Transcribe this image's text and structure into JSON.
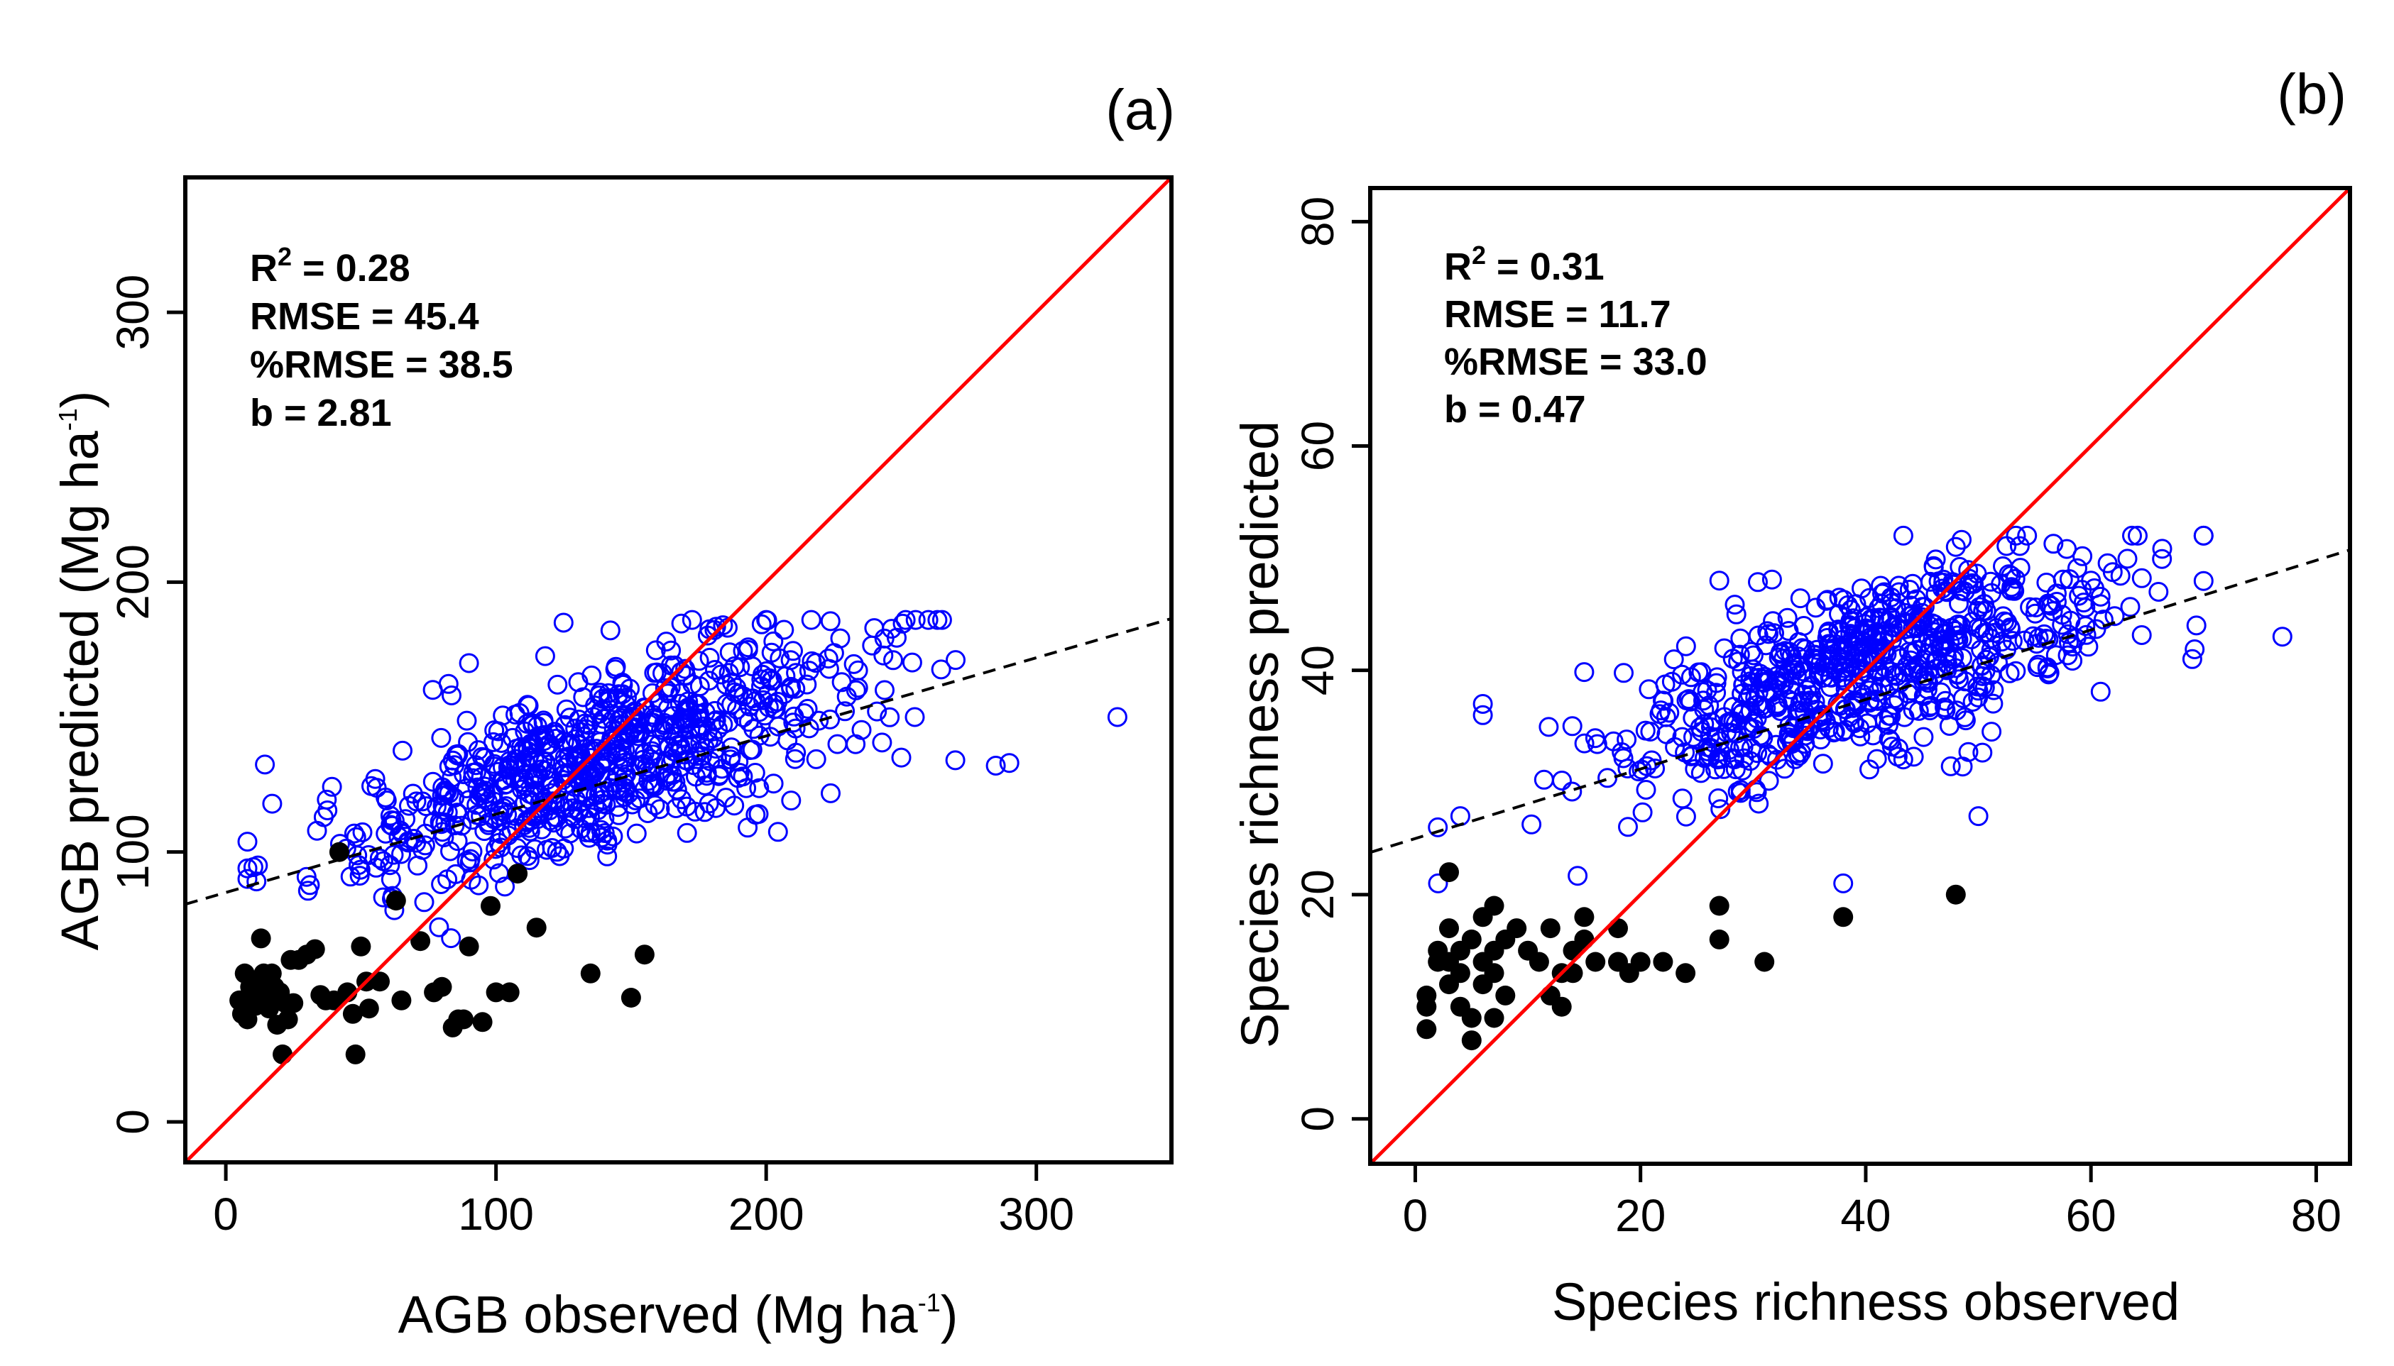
{
  "colors": {
    "open_points": "#0000ff",
    "filled_points": "#000000",
    "identity_line": "#ff0000",
    "fit_line": "#000000"
  },
  "chart_data": [
    {
      "type": "scatter",
      "panel_label": "(a)",
      "xlabel_main": "AGB observed (Mg ha",
      "xlabel_sup": "-1",
      "xlabel_end": ")",
      "ylabel_main": "AGB predicted (Mg ha",
      "ylabel_sup": "-1",
      "ylabel_end": ")",
      "xlim": [
        -15,
        350
      ],
      "ylim": [
        -15,
        350
      ],
      "xticks": [
        0,
        100,
        200,
        300
      ],
      "yticks": [
        0,
        100,
        200,
        300
      ],
      "xtick_labels": [
        "0",
        "100",
        "200",
        "300"
      ],
      "ytick_labels": [
        "0",
        "100",
        "200",
        "300"
      ],
      "stats": {
        "r2_prefix": "R",
        "r2_sup": "2",
        "r2_value": " = 0.28",
        "rmse": "RMSE = 45.4",
        "prmse": "%RMSE = 38.5",
        "b": "b = 2.81"
      },
      "identity_line": {
        "slope": 1,
        "intercept": 0
      },
      "fit_line": {
        "slope": 0.29,
        "intercept": 85
      },
      "cloud": {
        "n": 760,
        "x_range": [
          8,
          335
        ],
        "x_center": 140,
        "x_spread": 48,
        "y_center_at_x0": 90,
        "y_slope": 0.32,
        "y_spread": 16,
        "y_range": [
          62,
          186
        ]
      },
      "series_open_outliers": [
        [
          330,
          150
        ],
        [
          290,
          133
        ],
        [
          285,
          132
        ],
        [
          270,
          134
        ],
        [
          255,
          150
        ],
        [
          240,
          183
        ],
        [
          200,
          186
        ],
        [
          125,
          185
        ],
        [
          163,
          178
        ],
        [
          90,
          170
        ],
        [
          250,
          135
        ]
      ],
      "series_filled": [
        [
          5,
          45
        ],
        [
          6,
          40
        ],
        [
          7,
          55
        ],
        [
          8,
          38
        ],
        [
          9,
          50
        ],
        [
          10,
          48
        ],
        [
          11,
          43
        ],
        [
          12,
          52
        ],
        [
          13,
          68
        ],
        [
          14,
          55
        ],
        [
          15,
          47
        ],
        [
          16,
          42
        ],
        [
          17,
          55
        ],
        [
          18,
          50
        ],
        [
          19,
          36
        ],
        [
          20,
          48
        ],
        [
          21,
          25
        ],
        [
          22,
          44
        ],
        [
          23,
          38
        ],
        [
          24,
          60
        ],
        [
          25,
          44
        ],
        [
          27,
          60
        ],
        [
          30,
          62
        ],
        [
          33,
          64
        ],
        [
          35,
          47
        ],
        [
          37,
          45
        ],
        [
          40,
          45
        ],
        [
          42,
          100
        ],
        [
          45,
          48
        ],
        [
          47,
          40
        ],
        [
          48,
          25
        ],
        [
          50,
          65
        ],
        [
          52,
          52
        ],
        [
          53,
          42
        ],
        [
          57,
          52
        ],
        [
          63,
          82
        ],
        [
          65,
          45
        ],
        [
          72,
          67
        ],
        [
          77,
          48
        ],
        [
          80,
          50
        ],
        [
          84,
          35
        ],
        [
          86,
          38
        ],
        [
          88,
          38
        ],
        [
          90,
          65
        ],
        [
          95,
          37
        ],
        [
          98,
          80
        ],
        [
          100,
          48
        ],
        [
          105,
          48
        ],
        [
          108,
          92
        ],
        [
          115,
          72
        ],
        [
          135,
          55
        ],
        [
          150,
          46
        ],
        [
          155,
          62
        ]
      ]
    },
    {
      "type": "scatter",
      "panel_label": "(b)",
      "xlabel_main": "Species richness observed",
      "ylabel_main": "Species richness predicted",
      "xlim": [
        -4,
        83
      ],
      "ylim": [
        -4,
        83
      ],
      "xticks": [
        0,
        20,
        40,
        60,
        80
      ],
      "yticks": [
        0,
        20,
        40,
        60,
        80
      ],
      "xtick_labels": [
        "0",
        "20",
        "40",
        "60",
        "80"
      ],
      "ytick_labels": [
        "0",
        "20",
        "40",
        "60",
        "80"
      ],
      "stats": {
        "r2_prefix": "R",
        "r2_sup": "2",
        "r2_value": " = 0.31",
        "rmse": "RMSE = 11.7",
        "prmse": "%RMSE = 33.0",
        "b": "b = 0.47"
      },
      "identity_line": {
        "slope": 1,
        "intercept": 0
      },
      "fit_line": {
        "slope": 0.31,
        "intercept": 25
      },
      "cloud": {
        "n": 720,
        "x_range": [
          2,
          70
        ],
        "x_center": 40,
        "x_spread": 11,
        "y_center_at_x0": 27.5,
        "y_slope": 0.32,
        "y_spread": 3.8,
        "y_range": [
          21,
          52
        ]
      },
      "series_open_outliers": [
        [
          77,
          43
        ],
        [
          69,
          41
        ],
        [
          66,
          47
        ],
        [
          60,
          48
        ],
        [
          48,
          51
        ],
        [
          27,
          48
        ],
        [
          38,
          21
        ],
        [
          2,
          26
        ],
        [
          4,
          27
        ],
        [
          6,
          37
        ],
        [
          6,
          36
        ],
        [
          50,
          27
        ]
      ],
      "series_filled": [
        [
          1,
          8
        ],
        [
          1,
          10
        ],
        [
          1,
          11
        ],
        [
          2,
          14
        ],
        [
          2,
          15
        ],
        [
          3,
          22
        ],
        [
          3,
          17
        ],
        [
          3,
          14
        ],
        [
          3,
          12
        ],
        [
          4,
          13
        ],
        [
          4,
          15
        ],
        [
          4,
          10
        ],
        [
          5,
          7
        ],
        [
          5,
          9
        ],
        [
          5,
          16
        ],
        [
          6,
          18
        ],
        [
          6,
          14
        ],
        [
          6,
          12
        ],
        [
          7,
          19
        ],
        [
          7,
          15
        ],
        [
          7,
          13
        ],
        [
          7,
          9
        ],
        [
          8,
          16
        ],
        [
          8,
          11
        ],
        [
          9,
          17
        ],
        [
          10,
          15
        ],
        [
          11,
          14
        ],
        [
          12,
          17
        ],
        [
          12,
          11
        ],
        [
          13,
          10
        ],
        [
          13,
          13
        ],
        [
          14,
          15
        ],
        [
          14,
          13
        ],
        [
          15,
          16
        ],
        [
          15,
          18
        ],
        [
          16,
          14
        ],
        [
          18,
          17
        ],
        [
          18,
          14
        ],
        [
          19,
          13
        ],
        [
          20,
          14
        ],
        [
          22,
          14
        ],
        [
          24,
          13
        ],
        [
          27,
          19
        ],
        [
          27,
          16
        ],
        [
          31,
          14
        ],
        [
          38,
          18
        ],
        [
          48,
          20
        ]
      ]
    }
  ]
}
